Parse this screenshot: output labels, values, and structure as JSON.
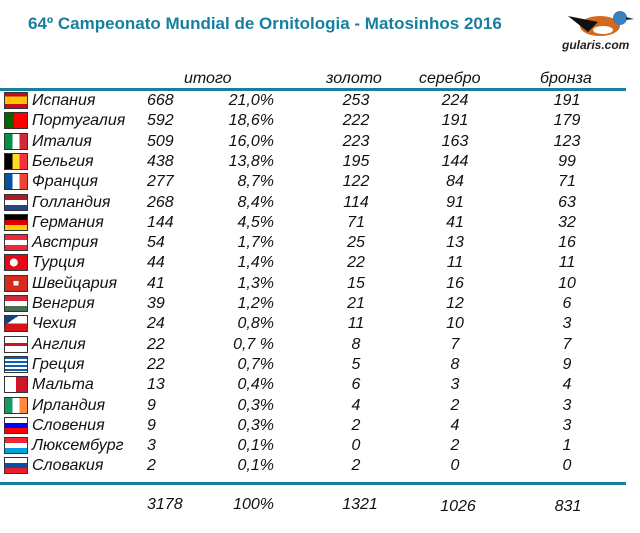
{
  "title": "64º Campeonato Mundial de Ornitologia - Matosinhos 2016",
  "logo_text": "gularis.com",
  "headers": {
    "total": "итого",
    "gold": "золото",
    "silver": "серебро",
    "bronze": "бронза"
  },
  "rows": [
    {
      "country": "Испания",
      "flag": "es",
      "total": "668",
      "pct": "21,0%",
      "gold": "253",
      "silver": "224",
      "bronze": "191"
    },
    {
      "country": "Португалия",
      "flag": "pt",
      "total": "592",
      "pct": "18,6%",
      "gold": "222",
      "silver": "191",
      "bronze": "179"
    },
    {
      "country": "Италия",
      "flag": "it",
      "total": "509",
      "pct": "16,0%",
      "gold": "223",
      "silver": "163",
      "bronze": "123"
    },
    {
      "country": "Бельгия",
      "flag": "be",
      "total": "438",
      "pct": "13,8%",
      "gold": "195",
      "silver": "144",
      "bronze": "99"
    },
    {
      "country": "Франция",
      "flag": "fr",
      "total": "277",
      "pct": "8,7%",
      "gold": "122",
      "silver": "84",
      "bronze": "71"
    },
    {
      "country": "Голландия",
      "flag": "nl",
      "total": "268",
      "pct": "8,4%",
      "gold": "114",
      "silver": "91",
      "bronze": "63"
    },
    {
      "country": "Германия",
      "flag": "de",
      "total": "144",
      "pct": "4,5%",
      "gold": "71",
      "silver": "41",
      "bronze": "32"
    },
    {
      "country": "Австрия",
      "flag": "at",
      "total": "54",
      "pct": "1,7%",
      "gold": "25",
      "silver": "13",
      "bronze": "16"
    },
    {
      "country": "Турция",
      "flag": "tr",
      "total": "44",
      "pct": "1,4%",
      "gold": "22",
      "silver": "11",
      "bronze": "11"
    },
    {
      "country": "Швейцария",
      "flag": "ch",
      "total": "41",
      "pct": "1,3%",
      "gold": "15",
      "silver": "16",
      "bronze": "10"
    },
    {
      "country": "Венгрия",
      "flag": "hu",
      "total": "39",
      "pct": "1,2%",
      "gold": "21",
      "silver": "12",
      "bronze": "6"
    },
    {
      "country": "Чехия",
      "flag": "cz",
      "total": "24",
      "pct": "0,8%",
      "gold": "11",
      "silver": "10",
      "bronze": "3"
    },
    {
      "country": "Англия",
      "flag": "en",
      "total": "22",
      "pct": "0,7 %",
      "gold": "8",
      "silver": "7",
      "bronze": "7"
    },
    {
      "country": "Греция",
      "flag": "gr",
      "total": "22",
      "pct": "0,7%",
      "gold": "5",
      "silver": "8",
      "bronze": "9"
    },
    {
      "country": "Мальта",
      "flag": "mt",
      "total": "13",
      "pct": "0,4%",
      "gold": "6",
      "silver": "3",
      "bronze": "4"
    },
    {
      "country": "Ирландия",
      "flag": "ie",
      "total": "9",
      "pct": "0,3%",
      "gold": "4",
      "silver": "2",
      "bronze": "3"
    },
    {
      "country": "Словения",
      "flag": "si",
      "total": "9",
      "pct": "0,3%",
      "gold": "2",
      "silver": "4",
      "bronze": "3"
    },
    {
      "country": "Люксембург",
      "flag": "lu",
      "total": "3",
      "pct": "0,1%",
      "gold": "0",
      "silver": "2",
      "bronze": "1"
    },
    {
      "country": "Словакия",
      "flag": "sk",
      "total": "2",
      "pct": "0,1%",
      "gold": "2",
      "silver": "0",
      "bronze": "0"
    }
  ],
  "totals": {
    "total": "3178",
    "pct": "100%",
    "gold": "1321",
    "silver": "1026",
    "bronze": "831"
  },
  "accent": "#17809e"
}
